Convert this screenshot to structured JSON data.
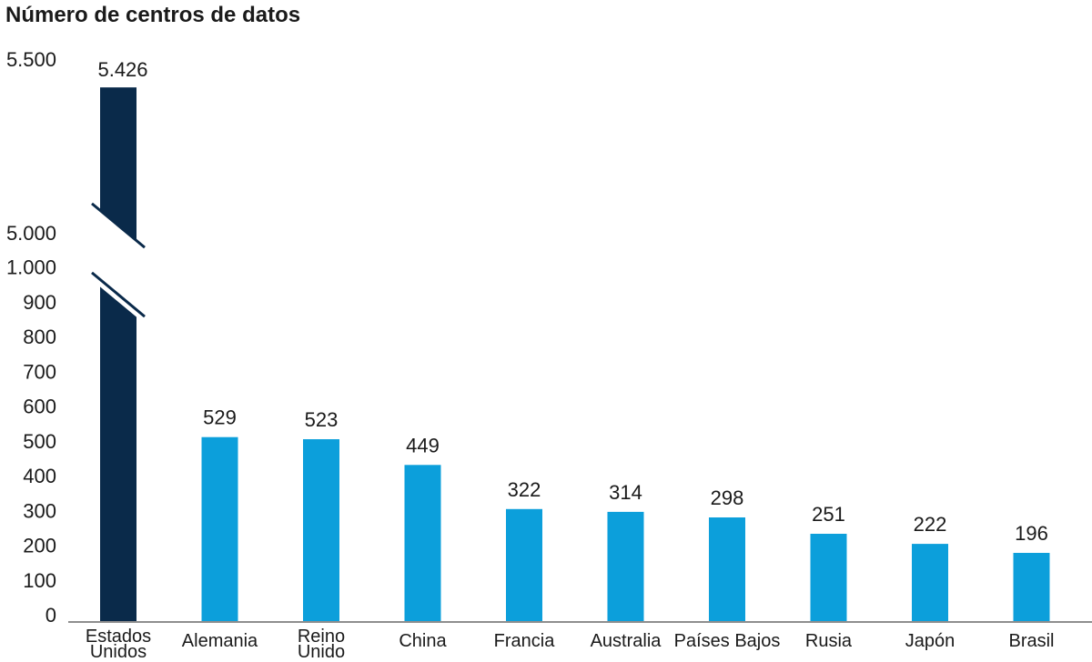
{
  "title": "Número de centros de datos",
  "colors": {
    "highlight_bar": "#0a2a4a",
    "bar": "#0c9fdb",
    "axis_line": "#8e8e8e",
    "text": "#1a1a1a",
    "background": "#ffffff"
  },
  "chart_data": {
    "type": "bar",
    "title": "Número de centros de datos",
    "xlabel": "",
    "ylabel": "Número de centros de datos",
    "grid": false,
    "legend": null,
    "categories": [
      "Estados Unidos",
      "Alemania",
      "Reino Unido",
      "China",
      "Francia",
      "Australia",
      "Países Bajos",
      "Rusia",
      "Japón",
      "Brasil"
    ],
    "category_label_lines": [
      [
        "Estados",
        "Unidos"
      ],
      [
        "Alemania"
      ],
      [
        "Reino",
        "Unido"
      ],
      [
        "China"
      ],
      [
        "Francia"
      ],
      [
        "Australia"
      ],
      [
        "Países Bajos"
      ],
      [
        "Rusia"
      ],
      [
        "Japón"
      ],
      [
        "Brasil"
      ]
    ],
    "values": [
      5426,
      529,
      523,
      449,
      322,
      314,
      298,
      251,
      222,
      196
    ],
    "value_labels": [
      "5.426",
      "529",
      "523",
      "449",
      "322",
      "314",
      "298",
      "251",
      "222",
      "196"
    ],
    "highlight_index": 0,
    "axis_break": {
      "broken_series_index": 0,
      "lower_axis_range": [
        0,
        1000
      ],
      "upper_axis_range": [
        5000,
        5500
      ]
    },
    "lower_ticks": [
      {
        "value": 0,
        "label": "0"
      },
      {
        "value": 100,
        "label": "100"
      },
      {
        "value": 200,
        "label": "200"
      },
      {
        "value": 300,
        "label": "300"
      },
      {
        "value": 400,
        "label": "400"
      },
      {
        "value": 500,
        "label": "500"
      },
      {
        "value": 600,
        "label": "600"
      },
      {
        "value": 700,
        "label": "700"
      },
      {
        "value": 800,
        "label": "800"
      },
      {
        "value": 900,
        "label": "900"
      },
      {
        "value": 1000,
        "label": "1.000"
      }
    ],
    "upper_ticks": [
      {
        "value": 5000,
        "label": "5.000"
      },
      {
        "value": 5500,
        "label": "5.500"
      }
    ]
  }
}
